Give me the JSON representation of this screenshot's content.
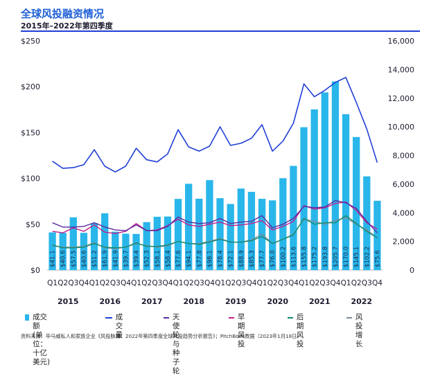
{
  "header": {
    "title": "全球风投融资情况",
    "subtitle": "2015年–2022年第四季度"
  },
  "chart_data": {
    "type": "bar+line",
    "quarters": [
      "Q1",
      "Q2",
      "Q3",
      "Q4",
      "Q1",
      "Q2",
      "Q3",
      "Q4",
      "Q1",
      "Q2",
      "Q3",
      "Q4",
      "Q1",
      "Q2",
      "Q3",
      "Q4",
      "Q1",
      "Q2",
      "Q3",
      "Q4",
      "Q1",
      "Q2",
      "Q3",
      "Q4",
      "Q1",
      "Q2",
      "Q3",
      "Q4",
      "Q1",
      "Q2",
      "Q3",
      "Q4"
    ],
    "years": [
      "2015",
      "2016",
      "2017",
      "2018",
      "2019",
      "2020",
      "2021",
      "2022"
    ],
    "left_axis": {
      "ticks": [
        "$0",
        "$50",
        "$100",
        "$150",
        "$200",
        "$250"
      ],
      "range": [
        0,
        250
      ]
    },
    "right_axis": {
      "ticks": [
        "0",
        "2,000",
        "4,000",
        "6,000",
        "8,000",
        "10,000",
        "12,000",
        "14,000",
        "16,000"
      ],
      "range": [
        0,
        16000
      ]
    },
    "bar_labels": [
      "$41.1",
      "$40.6",
      "$57.5",
      "$40.6",
      "$51.2",
      "$61.9",
      "$41.9",
      "$39.7",
      "$39.4",
      "$52.3",
      "$58.1",
      "$58.4",
      "$77.6",
      "$94.1",
      "$77.8",
      "$98.1",
      "$78.4",
      "$72.1",
      "$88.9",
      "$85.3",
      "$77.7",
      "$76.0",
      "$100.2",
      "$113.6",
      "$155.8",
      "$175.2",
      "$193.8",
      "$205.7",
      "$170.0",
      "$145.1",
      "$102.2",
      "$75.6"
    ],
    "series": [
      {
        "name": "成交额 (单位：十亿美元)",
        "type": "bar",
        "axis": "left",
        "color": "#29b6ea",
        "values": [
          41.1,
          40.6,
          57.5,
          40.6,
          51.2,
          61.9,
          41.9,
          39.7,
          39.4,
          52.3,
          58.1,
          58.4,
          77.6,
          94.1,
          77.8,
          98.1,
          78.4,
          72.1,
          88.9,
          85.3,
          77.7,
          76.0,
          100.2,
          113.6,
          155.8,
          175.2,
          193.8,
          205.7,
          170.0,
          145.1,
          102.2,
          75.6
        ]
      },
      {
        "name": "成交量",
        "type": "line",
        "axis": "right",
        "color": "#1f3fd6",
        "values": [
          7600,
          7100,
          7150,
          7350,
          8400,
          7250,
          6850,
          7250,
          8500,
          7700,
          7550,
          8100,
          9800,
          8600,
          8300,
          8650,
          10000,
          8700,
          8850,
          9200,
          10150,
          8300,
          9000,
          10250,
          13000,
          12100,
          12550,
          13100,
          13450,
          11700,
          9850,
          7500
        ]
      },
      {
        "name": "天使轮与种子轮",
        "type": "line",
        "axis": "right",
        "color": "#5b2aa0",
        "values": [
          3300,
          3000,
          3000,
          3050,
          3300,
          3000,
          2800,
          2750,
          3150,
          2750,
          2750,
          3050,
          3700,
          3350,
          3250,
          3300,
          3600,
          3250,
          3350,
          3400,
          3800,
          2950,
          3200,
          3600,
          4450,
          4350,
          4400,
          4850,
          4700,
          4300,
          3400,
          2600
        ]
      },
      {
        "name": "早期风投",
        "type": "line",
        "axis": "right",
        "color": "#c21e8e",
        "values": [
          2700,
          2600,
          2950,
          2700,
          3150,
          2650,
          2550,
          2700,
          3250,
          2750,
          2800,
          3100,
          3550,
          3150,
          3050,
          3200,
          3350,
          3100,
          3150,
          3250,
          3450,
          2800,
          3050,
          3400,
          4500,
          4250,
          4350,
          4650,
          4750,
          4150,
          3300,
          2850
        ]
      },
      {
        "name": "后期风投",
        "type": "line",
        "axis": "right",
        "color": "#0f8c6e",
        "values": [
          1750,
          1550,
          1550,
          1600,
          1850,
          1600,
          1550,
          1600,
          1900,
          1650,
          1650,
          1750,
          2000,
          1850,
          1800,
          1950,
          2150,
          1950,
          1950,
          2050,
          2350,
          1850,
          2150,
          2450,
          3600,
          3200,
          3300,
          3300,
          3800,
          3250,
          2700,
          2250
        ]
      },
      {
        "name": "风投增长",
        "type": "line",
        "axis": "right",
        "color": "#7b8a99",
        "values": [
          1700,
          1600,
          1600,
          1650,
          1900,
          1550,
          1500,
          1600,
          1850,
          1700,
          1600,
          1700,
          2000,
          1850,
          1850,
          2000,
          2200,
          1950,
          1950,
          2100,
          2500,
          1850,
          2150,
          2500,
          3550,
          3400,
          3200,
          3450,
          3650,
          3200,
          2800,
          2250
        ]
      }
    ]
  },
  "legend": [
    {
      "name": "volume-bar",
      "label_line1": "成交额",
      "label_line2": "(单位：十亿美元)",
      "kind": "box",
      "color": "#29b6ea"
    },
    {
      "name": "deal-count",
      "label_line1": "成交量",
      "label_line2": "",
      "kind": "line",
      "color": "#1f3fd6"
    },
    {
      "name": "angel-seed",
      "label_line1": "天使轮与",
      "label_line2": "种子轮",
      "kind": "line",
      "color": "#5b2aa0"
    },
    {
      "name": "early-vc",
      "label_line1": "早期风投",
      "label_line2": "",
      "kind": "line",
      "color": "#c21e8e"
    },
    {
      "name": "late-vc",
      "label_line1": "后期风投",
      "label_line2": "",
      "kind": "line",
      "color": "#0f8c6e"
    },
    {
      "name": "growth-vc",
      "label_line1": "风投增长",
      "label_line2": "",
      "kind": "line",
      "color": "#7b8a99"
    }
  ],
  "footer": {
    "source": "资料来源：毕马威私人和家族企业《风投脉搏：2022年第四季度全球风投趋势分析报告》；PitchBook数据（2023年1月18日）"
  }
}
